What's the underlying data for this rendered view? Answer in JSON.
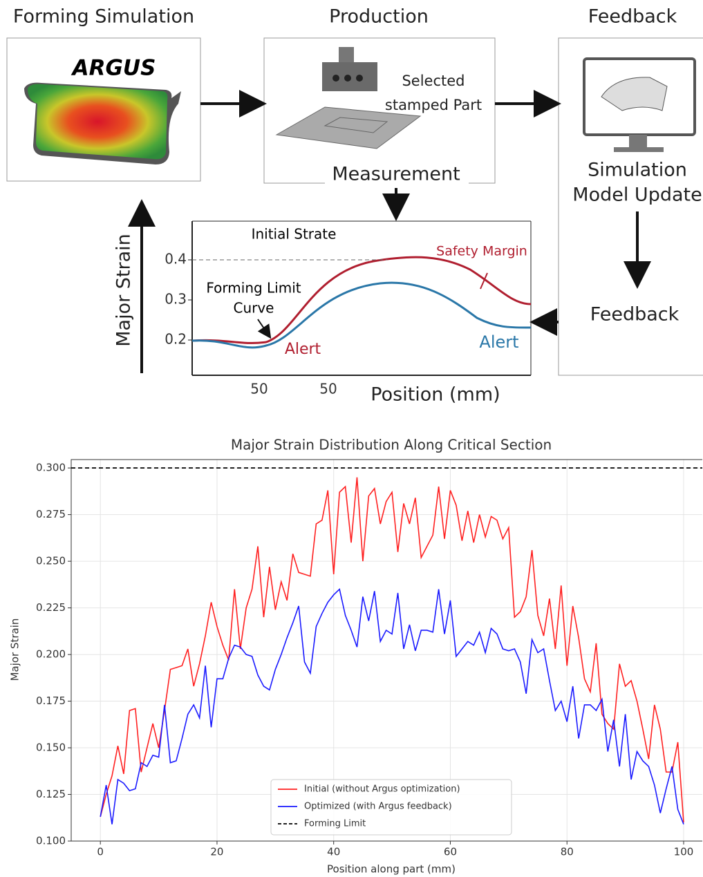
{
  "diagram": {
    "stages": {
      "simulation": "Forming Simulation",
      "production": "Production",
      "feedback": "Feedback"
    },
    "software": "ARGUS",
    "part_label": [
      "Selected",
      "stamped Part"
    ],
    "measurement": "Measurement",
    "model_update": [
      "Simulation",
      "Model Update"
    ],
    "feedback_step": "Feedback",
    "inset": {
      "y_label": "Major Strain",
      "x_label": "Position (mm)",
      "yticks": [
        0.4,
        0.3,
        0.2
      ],
      "xtick_labels": [
        "50",
        "50"
      ],
      "initial": "Initial Strate",
      "safety": "Safety Margin",
      "flc": [
        "Forming Limit",
        "Curve"
      ],
      "alerts": [
        "Alert",
        "Alert"
      ]
    }
  },
  "chart_data": {
    "type": "line",
    "title": "Major Strain Distribution Along Critical Section",
    "x_label": "Position along part (mm)",
    "y_label": "Major Strain",
    "x": [
      0,
      1,
      2,
      3,
      4,
      5,
      6,
      7,
      8,
      9,
      10,
      11,
      12,
      13,
      14,
      15,
      16,
      17,
      18,
      19,
      20,
      21,
      22,
      23,
      24,
      25,
      26,
      27,
      28,
      29,
      30,
      31,
      32,
      33,
      34,
      35,
      36,
      37,
      38,
      39,
      40,
      41,
      42,
      43,
      44,
      45,
      46,
      47,
      48,
      49,
      50,
      51,
      52,
      53,
      54,
      55,
      56,
      57,
      58,
      59,
      60,
      61,
      62,
      63,
      64,
      65,
      66,
      67,
      68,
      69,
      70,
      71,
      72,
      73,
      74,
      75,
      76,
      77,
      78,
      79,
      80,
      81,
      82,
      83,
      84,
      85,
      86,
      87,
      88,
      89,
      90,
      91,
      92,
      93,
      94,
      95,
      96,
      97,
      98,
      99,
      100
    ],
    "series": [
      {
        "name": "Initial (without Argus optimization)",
        "color": "#ff2020",
        "values": [
          0.113,
          0.125,
          0.135,
          0.151,
          0.136,
          0.17,
          0.171,
          0.137,
          0.15,
          0.163,
          0.15,
          0.17,
          0.192,
          0.193,
          0.194,
          0.203,
          0.183,
          0.195,
          0.21,
          0.228,
          0.215,
          0.205,
          0.197,
          0.235,
          0.203,
          0.225,
          0.235,
          0.258,
          0.22,
          0.247,
          0.224,
          0.239,
          0.229,
          0.254,
          0.244,
          0.243,
          0.242,
          0.27,
          0.272,
          0.288,
          0.243,
          0.287,
          0.29,
          0.26,
          0.295,
          0.25,
          0.285,
          0.289,
          0.27,
          0.282,
          0.287,
          0.255,
          0.281,
          0.27,
          0.284,
          0.252,
          0.258,
          0.264,
          0.29,
          0.262,
          0.288,
          0.28,
          0.261,
          0.277,
          0.26,
          0.275,
          0.263,
          0.274,
          0.272,
          0.262,
          0.268,
          0.22,
          0.223,
          0.231,
          0.256,
          0.221,
          0.21,
          0.23,
          0.203,
          0.237,
          0.194,
          0.226,
          0.209,
          0.187,
          0.18,
          0.206,
          0.168,
          0.163,
          0.16,
          0.195,
          0.183,
          0.186,
          0.175,
          0.16,
          0.144,
          0.173,
          0.16,
          0.137,
          0.137,
          0.153,
          0.11
        ]
      },
      {
        "name": "Optimized (with Argus feedback)",
        "color": "#1a1aff",
        "values": [
          0.113,
          0.13,
          0.109,
          0.133,
          0.131,
          0.127,
          0.128,
          0.142,
          0.14,
          0.146,
          0.145,
          0.173,
          0.142,
          0.143,
          0.155,
          0.168,
          0.173,
          0.166,
          0.194,
          0.161,
          0.187,
          0.187,
          0.198,
          0.205,
          0.204,
          0.2,
          0.199,
          0.189,
          0.183,
          0.181,
          0.192,
          0.2,
          0.209,
          0.217,
          0.226,
          0.196,
          0.19,
          0.215,
          0.222,
          0.228,
          0.232,
          0.235,
          0.221,
          0.213,
          0.204,
          0.231,
          0.218,
          0.234,
          0.207,
          0.213,
          0.211,
          0.233,
          0.203,
          0.216,
          0.202,
          0.213,
          0.213,
          0.212,
          0.235,
          0.211,
          0.229,
          0.199,
          0.203,
          0.207,
          0.205,
          0.212,
          0.201,
          0.214,
          0.211,
          0.203,
          0.202,
          0.203,
          0.196,
          0.179,
          0.208,
          0.201,
          0.203,
          0.186,
          0.17,
          0.175,
          0.164,
          0.183,
          0.155,
          0.173,
          0.173,
          0.17,
          0.176,
          0.148,
          0.165,
          0.14,
          0.168,
          0.133,
          0.148,
          0.143,
          0.14,
          0.13,
          0.115,
          0.128,
          0.14,
          0.117,
          0.109
        ]
      }
    ],
    "reference_line": {
      "name": "Forming Limit",
      "value": 0.3,
      "color": "#000000"
    },
    "xlim": [
      -5,
      103.2
    ],
    "ylim": [
      0.1,
      0.3045
    ],
    "xticks": [
      0,
      20,
      40,
      60,
      80,
      100
    ],
    "yticks": [
      {
        "value": 0.1,
        "label": "0.100"
      },
      {
        "value": 0.125,
        "label": "0.125"
      },
      {
        "value": 0.15,
        "label": "0.150"
      },
      {
        "value": 0.175,
        "label": "0.175"
      },
      {
        "value": 0.2,
        "label": "0.200"
      },
      {
        "value": 0.225,
        "label": "0.225"
      },
      {
        "value": 0.25,
        "label": "0.250"
      },
      {
        "value": 0.275,
        "label": "0.275"
      },
      {
        "value": 0.3,
        "label": "0.300"
      }
    ],
    "grid": true,
    "legend": "lower center"
  }
}
